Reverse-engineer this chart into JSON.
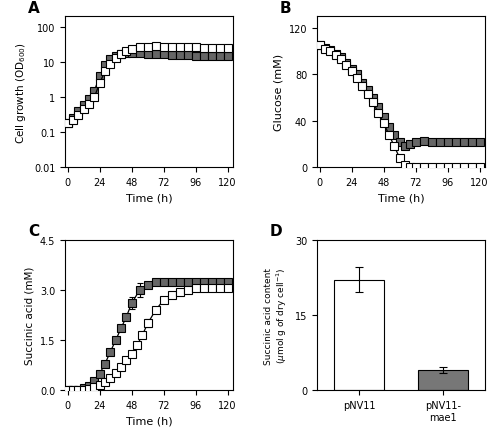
{
  "A_time": [
    0,
    4,
    8,
    12,
    16,
    20,
    24,
    28,
    32,
    36,
    40,
    44,
    48,
    54,
    60,
    66,
    72,
    78,
    84,
    90,
    96,
    102,
    108,
    114,
    120
  ],
  "A_hollow": [
    0.18,
    0.22,
    0.3,
    0.45,
    0.65,
    1.0,
    2.5,
    5.5,
    9.0,
    13.0,
    17.0,
    21.0,
    24.0,
    26.0,
    27.0,
    28.0,
    27.5,
    27.0,
    26.5,
    26.0,
    26.0,
    25.5,
    25.5,
    25.0,
    25.0
  ],
  "A_solid": [
    0.18,
    0.25,
    0.4,
    0.6,
    0.9,
    1.5,
    4.0,
    8.0,
    12.0,
    15.0,
    17.0,
    18.0,
    18.5,
    18.0,
    17.5,
    17.0,
    16.5,
    16.0,
    15.5,
    15.5,
    15.0,
    15.0,
    15.0,
    15.0,
    15.0
  ],
  "B_time": [
    0,
    4,
    8,
    12,
    16,
    20,
    24,
    28,
    32,
    36,
    40,
    44,
    48,
    52,
    56,
    60,
    64,
    68,
    72,
    78,
    84,
    90,
    96,
    102,
    108,
    114,
    120
  ],
  "B_hollow": [
    105,
    102,
    100,
    97,
    93,
    88,
    83,
    77,
    70,
    63,
    56,
    47,
    38,
    28,
    18,
    8,
    2,
    0.5,
    0.3,
    0.2,
    0.2,
    0.2,
    0.2,
    0.2,
    0.2,
    0.2,
    0.2
  ],
  "B_solid": [
    105,
    103,
    101,
    98,
    95,
    90,
    85,
    80,
    73,
    67,
    60,
    52,
    43,
    35,
    28,
    22,
    18,
    20,
    22,
    23,
    22,
    22,
    22,
    22,
    22,
    22,
    22
  ],
  "C_time_hollow": [
    0,
    4,
    8,
    12,
    16,
    20,
    24,
    28,
    32,
    36,
    40,
    44,
    48,
    52,
    56,
    60,
    66,
    72,
    78,
    84,
    90,
    96,
    102,
    108,
    114,
    120
  ],
  "C_hollow": [
    0,
    0,
    0,
    0.02,
    0.05,
    0.1,
    0.15,
    0.25,
    0.38,
    0.52,
    0.7,
    0.9,
    1.1,
    1.35,
    1.65,
    2.0,
    2.4,
    2.7,
    2.85,
    2.95,
    3.0,
    3.05,
    3.05,
    3.05,
    3.05,
    3.05
  ],
  "C_hollow_err": [
    0,
    0,
    0,
    0,
    0,
    0,
    0,
    0,
    0,
    0,
    0,
    0,
    0,
    0,
    0,
    0.12,
    0,
    0,
    0,
    0,
    0,
    0,
    0,
    0,
    0,
    0
  ],
  "C_time_solid": [
    0,
    4,
    8,
    12,
    16,
    20,
    24,
    28,
    32,
    36,
    40,
    44,
    48,
    54,
    60,
    66,
    72,
    78,
    84,
    90,
    96,
    102,
    108,
    114,
    120
  ],
  "C_solid": [
    0,
    0,
    0.02,
    0.06,
    0.14,
    0.28,
    0.5,
    0.8,
    1.15,
    1.5,
    1.85,
    2.2,
    2.6,
    3.0,
    3.15,
    3.25,
    3.25,
    3.25,
    3.25,
    3.25,
    3.25,
    3.25,
    3.25,
    3.25,
    3.25
  ],
  "C_solid_err": [
    0,
    0,
    0,
    0,
    0,
    0,
    0,
    0,
    0,
    0,
    0,
    0,
    0.18,
    0.22,
    0,
    0,
    0,
    0,
    0,
    0,
    0.05,
    0.05,
    0.05,
    0.05,
    0.05
  ],
  "D_labels": [
    "pNV11",
    "pNV11-\nmae1"
  ],
  "D_values": [
    22.0,
    4.0
  ],
  "D_errors": [
    2.5,
    0.6
  ],
  "D_colors": [
    "white",
    "#777777"
  ],
  "A_yticks": [
    0.01,
    0.1,
    1,
    10,
    100
  ],
  "A_ytick_labels": [
    "0.01",
    "0.1",
    "1",
    "10",
    "100"
  ],
  "hollow_color": "white",
  "solid_color": "#666666",
  "line_color": "black",
  "marker_size": 5.5,
  "marker_edge_color": "black",
  "marker_edge_width": 0.8,
  "line_width": 0.9
}
